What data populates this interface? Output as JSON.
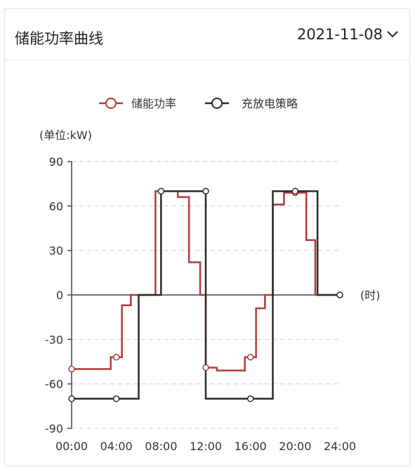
{
  "header": {
    "title": "储能功率曲线",
    "date": "2021-11-08"
  },
  "colors": {
    "power": "#b03a3a",
    "strategy": "#2b2b2b",
    "grid": "#dddddd",
    "axis": "#444444"
  },
  "chart_data": {
    "type": "line",
    "title": "",
    "ylabel": "(单位:kW)",
    "xlabel": "(时)",
    "ylim": [
      -90,
      90
    ],
    "xlim": [
      0,
      24
    ],
    "y_ticks": [
      "90",
      "60",
      "30",
      "0",
      "-30",
      "-60",
      "-90"
    ],
    "y_tick_values": [
      90,
      60,
      30,
      0,
      -30,
      -60,
      -90
    ],
    "x_ticks": [
      "00:00",
      "04:00",
      "08:00",
      "12:00",
      "16:00",
      "20:00",
      "24:00"
    ],
    "x_tick_values": [
      0,
      4,
      8,
      12,
      16,
      20,
      24
    ],
    "grid": "horizontal-dashed",
    "legend_position": "top-center",
    "series": [
      {
        "name": "储能功率",
        "color_key": "power",
        "step": "end",
        "points": [
          [
            0,
            -50
          ],
          [
            3.5,
            -50
          ],
          [
            3.5,
            -42
          ],
          [
            4.5,
            -42
          ],
          [
            4.5,
            -7
          ],
          [
            5.3,
            -7
          ],
          [
            5.3,
            0
          ],
          [
            7.5,
            0
          ],
          [
            7.5,
            70
          ],
          [
            9.5,
            70
          ],
          [
            9.5,
            66
          ],
          [
            10.5,
            66
          ],
          [
            10.5,
            22
          ],
          [
            11.5,
            22
          ],
          [
            11.5,
            0
          ],
          [
            12,
            0
          ],
          [
            12,
            -49
          ],
          [
            13,
            -49
          ],
          [
            13,
            -51
          ],
          [
            15.5,
            -51
          ],
          [
            15.5,
            -42
          ],
          [
            16.5,
            -42
          ],
          [
            16.5,
            -9
          ],
          [
            17.3,
            -9
          ],
          [
            17.3,
            0
          ],
          [
            18,
            0
          ],
          [
            18,
            61
          ],
          [
            19,
            61
          ],
          [
            19,
            69
          ],
          [
            21,
            69
          ],
          [
            21,
            37
          ],
          [
            21.8,
            37
          ],
          [
            21.8,
            0
          ],
          [
            24,
            0
          ]
        ],
        "markers": [
          [
            0,
            -50
          ],
          [
            4,
            -42
          ],
          [
            12,
            -49
          ],
          [
            16,
            -42
          ],
          [
            20,
            69
          ]
        ]
      },
      {
        "name": "充放电策略",
        "color_key": "strategy",
        "points": [
          [
            0,
            -70
          ],
          [
            6,
            -70
          ],
          [
            6,
            0
          ],
          [
            8,
            0
          ],
          [
            8,
            70
          ],
          [
            12,
            70
          ],
          [
            12,
            -70
          ],
          [
            18,
            -70
          ],
          [
            18,
            70
          ],
          [
            22,
            70
          ],
          [
            22,
            0
          ],
          [
            24,
            0
          ]
        ],
        "markers": [
          [
            0,
            -70
          ],
          [
            4,
            -70
          ],
          [
            8,
            70
          ],
          [
            12,
            70
          ],
          [
            16,
            -70
          ],
          [
            20,
            70
          ],
          [
            24,
            0
          ]
        ]
      }
    ]
  }
}
